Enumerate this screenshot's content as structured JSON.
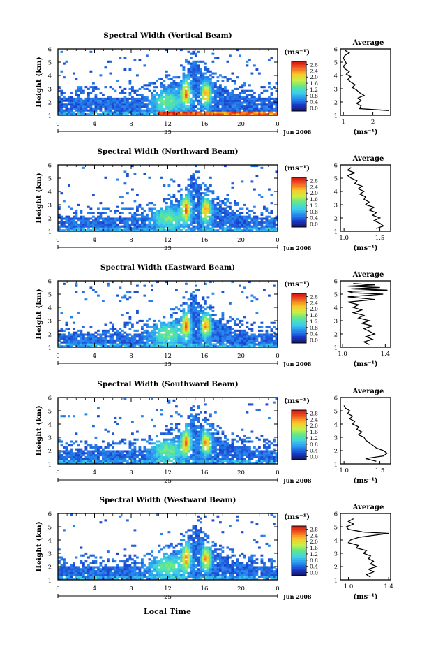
{
  "figure": {
    "local_time_label": "Local Time"
  },
  "chart_data": [
    {
      "type": "heatmap",
      "title": "Spectral Width (Vertical Beam)",
      "ylabel": "Height (km)",
      "ylim": [
        1,
        6
      ],
      "yticks": [
        "1",
        "2",
        "3",
        "4",
        "5",
        "6"
      ],
      "xlim": [
        0,
        24
      ],
      "xticks": [
        "0",
        "4",
        "8",
        "12",
        "16",
        "20",
        "0"
      ],
      "date_day": "25",
      "date_month": "Jun 2008",
      "colorbar": {
        "unit": "(ms⁻¹)",
        "tick_labels": [
          "0.0",
          "0.4",
          "0.8",
          "1.2",
          "1.6",
          "2.0",
          "2.4",
          "2.8"
        ]
      },
      "profile": {
        "title": "Average",
        "xlabel": "(ms⁻¹)",
        "xlim": [
          0.9,
          2.6
        ],
        "xticks": [
          1,
          2
        ],
        "xtick_labels": [
          "1",
          "2"
        ],
        "height": [
          1.35,
          1.5,
          1.7,
          1.9,
          2.1,
          2.3,
          2.5,
          2.7,
          2.9,
          3.1,
          3.3,
          3.5,
          3.7,
          3.9,
          4.1,
          4.3,
          4.5,
          4.7,
          4.9,
          5.1,
          5.3,
          5.5,
          5.7,
          5.9
        ],
        "value": [
          2.55,
          1.55,
          1.6,
          1.45,
          1.6,
          1.5,
          1.7,
          1.55,
          1.45,
          1.3,
          1.4,
          1.25,
          1.15,
          1.25,
          1.1,
          1.2,
          1.05,
          1.0,
          1.1,
          1.05,
          1.0,
          1.05,
          1.2,
          1.05
        ]
      }
    },
    {
      "type": "heatmap",
      "title": "Spectral Width (Northward Beam)",
      "ylabel": "Height (km)",
      "ylim": [
        1,
        6
      ],
      "yticks": [
        "1",
        "2",
        "3",
        "4",
        "5",
        "6"
      ],
      "xlim": [
        0,
        24
      ],
      "xticks": [
        "0",
        "4",
        "8",
        "12",
        "16",
        "20",
        "0"
      ],
      "date_day": "25",
      "date_month": "Jun 2008",
      "colorbar": {
        "unit": "(ms⁻¹)",
        "tick_labels": [
          "0.0",
          "0.4",
          "0.8",
          "1.2",
          "1.6",
          "2.0",
          "2.4",
          "2.8"
        ]
      },
      "profile": {
        "title": "Average",
        "xlabel": "(ms⁻¹)",
        "xlim": [
          0.95,
          1.65
        ],
        "xticks": [
          1.0,
          1.5
        ],
        "xtick_labels": [
          "1.0",
          "1.5"
        ],
        "height": [
          1.2,
          1.4,
          1.6,
          1.8,
          2.0,
          2.2,
          2.4,
          2.6,
          2.8,
          3.0,
          3.2,
          3.4,
          3.6,
          3.8,
          4.0,
          4.2,
          4.4,
          4.6,
          4.8,
          5.0,
          5.2,
          5.4,
          5.6,
          5.8
        ],
        "value": [
          1.45,
          1.55,
          1.5,
          1.42,
          1.5,
          1.4,
          1.45,
          1.35,
          1.42,
          1.3,
          1.35,
          1.28,
          1.3,
          1.22,
          1.28,
          1.2,
          1.25,
          1.15,
          1.18,
          1.1,
          1.05,
          1.15,
          1.05,
          1.1
        ]
      }
    },
    {
      "type": "heatmap",
      "title": "Spectral Width (Eastward Beam)",
      "ylabel": "Height (km)",
      "ylim": [
        1,
        6
      ],
      "yticks": [
        "1",
        "2",
        "3",
        "4",
        "5",
        "6"
      ],
      "xlim": [
        0,
        24
      ],
      "xticks": [
        "0",
        "4",
        "8",
        "12",
        "16",
        "20",
        "0"
      ],
      "date_day": "25",
      "date_month": "Jun 2008",
      "colorbar": {
        "unit": "(ms⁻¹)",
        "tick_labels": [
          "0.0",
          "0.4",
          "0.8",
          "1.2",
          "1.6",
          "2.0",
          "2.4",
          "2.8"
        ]
      },
      "profile": {
        "title": "Average",
        "xlabel": "(ms⁻¹)",
        "xlim": [
          0.98,
          1.45
        ],
        "xticks": [
          1.0,
          1.4
        ],
        "xtick_labels": [
          "1.0",
          "1.4"
        ],
        "height": [
          1.2,
          1.4,
          1.6,
          1.8,
          2.0,
          2.2,
          2.4,
          2.6,
          2.8,
          3.0,
          3.2,
          3.4,
          3.6,
          3.8,
          4.0,
          4.2,
          4.4,
          4.6,
          4.8,
          5.0,
          5.1,
          5.2,
          5.3,
          5.4,
          5.5,
          5.6,
          5.7,
          5.8
        ],
        "value": [
          1.25,
          1.2,
          1.28,
          1.22,
          1.3,
          1.25,
          1.2,
          1.28,
          1.18,
          1.25,
          1.15,
          1.2,
          1.1,
          1.18,
          1.1,
          1.15,
          1.05,
          1.3,
          1.05,
          1.38,
          1.1,
          1.05,
          1.42,
          1.08,
          1.35,
          1.05,
          1.3,
          1.1
        ]
      }
    },
    {
      "type": "heatmap",
      "title": "Spectral Width (Southward Beam)",
      "ylabel": "Height (km)",
      "ylim": [
        1,
        6
      ],
      "yticks": [
        "1",
        "2",
        "3",
        "4",
        "5",
        "6"
      ],
      "xlim": [
        0,
        24
      ],
      "xticks": [
        "0",
        "4",
        "8",
        "12",
        "16",
        "20",
        "0"
      ],
      "date_day": "25",
      "date_month": "Jun 2008",
      "colorbar": {
        "unit": "(ms⁻¹)",
        "tick_labels": [
          "0.0",
          "0.4",
          "0.8",
          "1.2",
          "1.6",
          "2.0",
          "2.4",
          "2.8"
        ]
      },
      "profile": {
        "title": "Average",
        "xlabel": "(ms⁻¹)",
        "xlim": [
          0.95,
          1.65
        ],
        "xticks": [
          1.0,
          1.5
        ],
        "xtick_labels": [
          "1.0",
          "1.5"
        ],
        "height": [
          1.2,
          1.4,
          1.6,
          1.8,
          2.0,
          2.2,
          2.4,
          2.6,
          2.8,
          3.0,
          3.2,
          3.4,
          3.6,
          3.8,
          4.0,
          4.2,
          4.4,
          4.6,
          4.8,
          5.0,
          5.2,
          5.4
        ],
        "value": [
          1.45,
          1.3,
          1.55,
          1.6,
          1.55,
          1.45,
          1.4,
          1.35,
          1.3,
          1.28,
          1.2,
          1.25,
          1.18,
          1.2,
          1.12,
          1.15,
          1.08,
          1.12,
          1.05,
          1.08,
          1.02,
          1.0
        ]
      }
    },
    {
      "type": "heatmap",
      "title": "Spectral Width (Westward Beam)",
      "ylabel": "Height (km)",
      "ylim": [
        1,
        6
      ],
      "yticks": [
        "1",
        "2",
        "3",
        "4",
        "5",
        "6"
      ],
      "xlim": [
        0,
        24
      ],
      "xticks": [
        "0",
        "4",
        "8",
        "12",
        "16",
        "20",
        "0"
      ],
      "date_day": "25",
      "date_month": "Jun 2008",
      "colorbar": {
        "unit": "(ms⁻¹)",
        "tick_labels": [
          "0.0",
          "0.4",
          "0.8",
          "1.2",
          "1.6",
          "2.0",
          "2.4",
          "2.8"
        ]
      },
      "profile": {
        "title": "Average",
        "xlabel": "(ms⁻¹)",
        "xlim": [
          0.92,
          1.42
        ],
        "xticks": [
          1.0,
          1.4
        ],
        "xtick_labels": [
          "1.0",
          "1.4"
        ],
        "height": [
          1.2,
          1.4,
          1.6,
          1.8,
          2.0,
          2.2,
          2.4,
          2.6,
          2.8,
          3.0,
          3.2,
          3.4,
          3.6,
          3.8,
          4.0,
          4.2,
          4.4,
          4.5,
          4.6,
          4.8,
          5.0,
          5.2,
          5.4,
          5.6
        ],
        "value": [
          1.22,
          1.18,
          1.25,
          1.2,
          1.28,
          1.22,
          1.25,
          1.2,
          1.22,
          1.15,
          1.18,
          1.08,
          1.1,
          1.0,
          1.02,
          1.1,
          1.3,
          1.4,
          1.15,
          1.0,
          0.98,
          1.05,
          1.0,
          1.05
        ]
      }
    }
  ]
}
